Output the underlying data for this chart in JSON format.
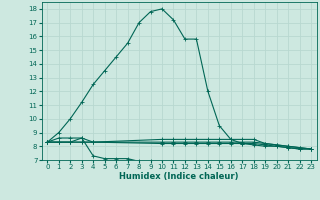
{
  "xlabel": "Humidex (Indice chaleur)",
  "xlim": [
    -0.5,
    23.5
  ],
  "ylim": [
    7,
    18.5
  ],
  "yticks": [
    7,
    8,
    9,
    10,
    11,
    12,
    13,
    14,
    15,
    16,
    17,
    18
  ],
  "xticks": [
    0,
    1,
    2,
    3,
    4,
    5,
    6,
    7,
    8,
    9,
    10,
    11,
    12,
    13,
    14,
    15,
    16,
    17,
    18,
    19,
    20,
    21,
    22,
    23
  ],
  "bg_color": "#cde8e0",
  "grid_color": "#b8d8d0",
  "line_color": "#006655",
  "main_curve": {
    "x": [
      0,
      1,
      2,
      3,
      4,
      5,
      6,
      7,
      8,
      9,
      10,
      11,
      12,
      13,
      14,
      15,
      16,
      17,
      18,
      19,
      20,
      21,
      22,
      23
    ],
    "y": [
      8.3,
      9.0,
      10.0,
      11.2,
      12.5,
      13.5,
      14.5,
      15.5,
      17.0,
      17.8,
      18.0,
      17.2,
      15.8,
      15.8,
      12.0,
      9.5,
      8.5,
      8.2,
      8.1,
      8.0,
      8.0,
      7.9,
      7.8,
      7.8
    ]
  },
  "low_curve": {
    "x": [
      0,
      1,
      2,
      3,
      4,
      5,
      6,
      7,
      8,
      9
    ],
    "y": [
      8.3,
      8.6,
      8.6,
      8.6,
      7.3,
      7.1,
      7.1,
      7.1,
      6.9,
      6.9
    ]
  },
  "flat_lines": [
    {
      "x": [
        0,
        1,
        2,
        3,
        4,
        10,
        11,
        12,
        13,
        14,
        15,
        16,
        17,
        18,
        19,
        20,
        21,
        22,
        23
      ],
      "y": [
        8.3,
        8.3,
        8.3,
        8.6,
        8.3,
        8.5,
        8.5,
        8.5,
        8.5,
        8.5,
        8.5,
        8.5,
        8.5,
        8.5,
        8.2,
        8.1,
        8.0,
        7.9,
        7.8
      ]
    },
    {
      "x": [
        0,
        1,
        2,
        3,
        4,
        10,
        11,
        12,
        13,
        14,
        15,
        16,
        17,
        18,
        19,
        20,
        21,
        22,
        23
      ],
      "y": [
        8.3,
        8.3,
        8.3,
        8.3,
        8.3,
        8.3,
        8.3,
        8.3,
        8.3,
        8.3,
        8.3,
        8.3,
        8.3,
        8.3,
        8.2,
        8.1,
        8.0,
        7.9,
        7.8
      ]
    },
    {
      "x": [
        0,
        1,
        2,
        3,
        4,
        10,
        11,
        12,
        13,
        14,
        15,
        16,
        17,
        18,
        19,
        20,
        21,
        22,
        23
      ],
      "y": [
        8.3,
        8.3,
        8.3,
        8.3,
        8.3,
        8.2,
        8.2,
        8.2,
        8.2,
        8.2,
        8.2,
        8.2,
        8.2,
        8.2,
        8.1,
        8.0,
        7.9,
        7.8,
        7.8
      ]
    }
  ]
}
